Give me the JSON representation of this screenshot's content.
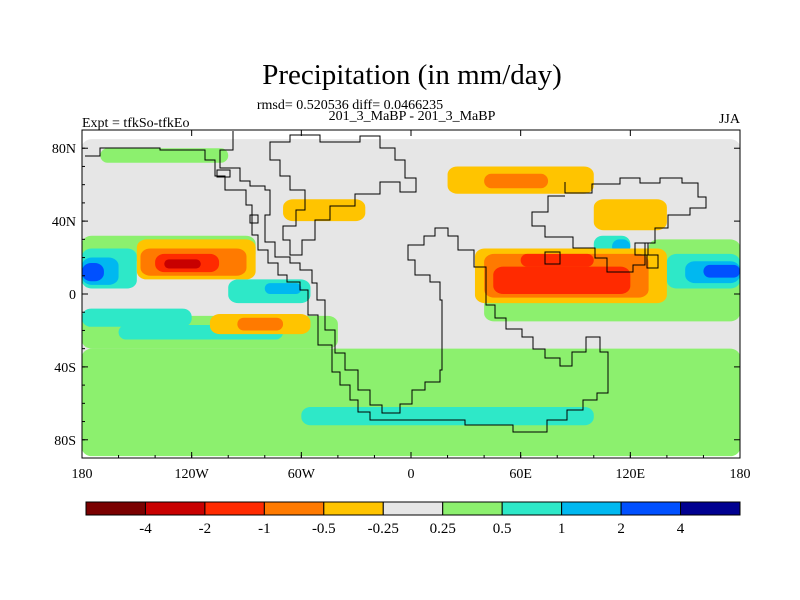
{
  "chart_data": {
    "type": "heatmap",
    "title": "Precipitation (in mm/day)",
    "subtitle": "rmsd= 0.520536 diff= 0.0466235",
    "center_label": "201_3_MaBP - 201_3_MaBP",
    "left_label": "Expt = tfkSo-tfkEo",
    "right_label": "JJA",
    "x_axis": {
      "range": [
        -180,
        180
      ],
      "ticks": [
        -180,
        -120,
        -60,
        0,
        60,
        120,
        180
      ],
      "tick_labels": [
        "180",
        "120W",
        "60W",
        "0",
        "60E",
        "120E",
        "180"
      ]
    },
    "y_axis": {
      "range": [
        -90,
        90
      ],
      "ticks": [
        80,
        40,
        0,
        -40,
        -80
      ],
      "tick_labels": [
        "80N",
        "40N",
        "0",
        "40S",
        "80S"
      ]
    },
    "colorbar": {
      "colors": [
        "#7a0000",
        "#c80000",
        "#ff2a00",
        "#ff7a00",
        "#ffc400",
        "#e6e6e6",
        "#8cf06e",
        "#2ee8c8",
        "#00b8f0",
        "#0050ff",
        "#000090"
      ],
      "labels": [
        "-4",
        "-2",
        "-1",
        "-0.5",
        "-0.25",
        "0.25",
        "0.5",
        "1",
        "2",
        "4"
      ]
    },
    "regions": [
      {
        "level": 5,
        "lon": [
          -180,
          180
        ],
        "lat": [
          -85,
          85
        ]
      },
      {
        "level": 6,
        "lon": [
          -180,
          180
        ],
        "lat": [
          -89,
          -30
        ]
      },
      {
        "level": 6,
        "lon": [
          -180,
          -85
        ],
        "lat": [
          18,
          32
        ]
      },
      {
        "level": 6,
        "lon": [
          -180,
          -40
        ],
        "lat": [
          -30,
          -12
        ]
      },
      {
        "level": 6,
        "lon": [
          40,
          180
        ],
        "lat": [
          -15,
          10
        ]
      },
      {
        "level": 6,
        "lon": [
          130,
          180
        ],
        "lat": [
          8,
          30
        ]
      },
      {
        "level": 6,
        "lon": [
          -170,
          -100
        ],
        "lat": [
          72,
          80
        ]
      },
      {
        "level": 6,
        "lon": [
          60,
          140
        ],
        "lat": [
          -52,
          -38
        ]
      },
      {
        "level": 7,
        "lon": [
          -180,
          -150
        ],
        "lat": [
          3,
          25
        ]
      },
      {
        "level": 7,
        "lon": [
          -100,
          -55
        ],
        "lat": [
          -5,
          8
        ]
      },
      {
        "level": 7,
        "lon": [
          -180,
          -120
        ],
        "lat": [
          -18,
          -8
        ]
      },
      {
        "level": 7,
        "lon": [
          -160,
          -70
        ],
        "lat": [
          -25,
          -17
        ]
      },
      {
        "level": 7,
        "lon": [
          -60,
          100
        ],
        "lat": [
          -72,
          -62
        ]
      },
      {
        "level": 7,
        "lon": [
          100,
          120
        ],
        "lat": [
          22,
          32
        ]
      },
      {
        "level": 7,
        "lon": [
          140,
          180
        ],
        "lat": [
          3,
          22
        ]
      },
      {
        "level": 8,
        "lon": [
          -180,
          -160
        ],
        "lat": [
          5,
          20
        ]
      },
      {
        "level": 8,
        "lon": [
          -80,
          -60
        ],
        "lat": [
          0,
          6
        ]
      },
      {
        "level": 8,
        "lon": [
          110,
          120
        ],
        "lat": [
          22,
          30
        ]
      },
      {
        "level": 8,
        "lon": [
          150,
          180
        ],
        "lat": [
          6,
          18
        ]
      },
      {
        "level": 9,
        "lon": [
          -180,
          -168
        ],
        "lat": [
          7,
          17
        ]
      },
      {
        "level": 9,
        "lon": [
          160,
          180
        ],
        "lat": [
          9,
          16
        ]
      },
      {
        "level": 4,
        "lon": [
          -150,
          -85
        ],
        "lat": [
          8,
          30
        ]
      },
      {
        "level": 4,
        "lon": [
          -110,
          -55
        ],
        "lat": [
          -22,
          -11
        ]
      },
      {
        "level": 4,
        "lon": [
          20,
          100
        ],
        "lat": [
          55,
          70
        ]
      },
      {
        "level": 4,
        "lon": [
          -70,
          -25
        ],
        "lat": [
          40,
          52
        ]
      },
      {
        "level": 4,
        "lon": [
          35,
          140
        ],
        "lat": [
          -5,
          25
        ]
      },
      {
        "level": 4,
        "lon": [
          100,
          140
        ],
        "lat": [
          35,
          52
        ]
      },
      {
        "level": 3,
        "lon": [
          -148,
          -90
        ],
        "lat": [
          10,
          25
        ]
      },
      {
        "level": 3,
        "lon": [
          -95,
          -70
        ],
        "lat": [
          -20,
          -13
        ]
      },
      {
        "level": 3,
        "lon": [
          40,
          130
        ],
        "lat": [
          -2,
          22
        ]
      },
      {
        "level": 3,
        "lon": [
          40,
          75
        ],
        "lat": [
          58,
          66
        ]
      },
      {
        "level": 2,
        "lon": [
          -140,
          -105
        ],
        "lat": [
          12,
          22
        ]
      },
      {
        "level": 2,
        "lon": [
          45,
          120
        ],
        "lat": [
          0,
          15
        ]
      },
      {
        "level": 2,
        "lon": [
          60,
          100
        ],
        "lat": [
          15,
          22
        ]
      },
      {
        "level": 1,
        "lon": [
          -135,
          -115
        ],
        "lat": [
          14,
          19
        ]
      }
    ]
  }
}
